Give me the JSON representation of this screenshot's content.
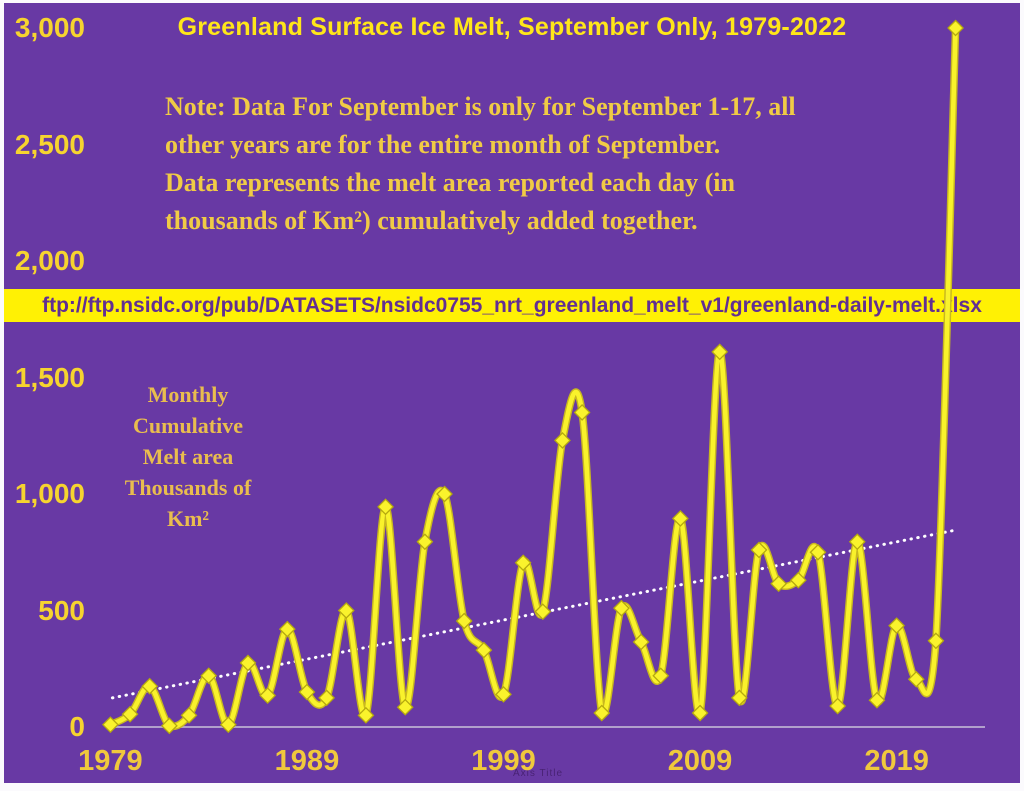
{
  "title": "Greenland Surface Ice Melt, September Only, 1979-2022",
  "note": {
    "lines": [
      "Note: Data For September is only for September 1-17, all",
      "other years are for the entire month of September.",
      "Data represents the melt area reported each day (in",
      "thousands of Km²) cumulatively added together."
    ]
  },
  "source_banner": {
    "url": "ftp://ftp.nsidc.org/pub/DATASETS/nsidc0755_nrt_greenland_melt_v1/greenland-daily-melt.xlsx"
  },
  "y_axis_title": {
    "lines": [
      "Monthly",
      "Cumulative",
      "Melt area",
      "Thousands of",
      "Km²"
    ]
  },
  "watermark": "Axis Title",
  "colors": {
    "background": "#6839A4",
    "line": "#F9F22B",
    "line_edge": "#C8B81F",
    "marker_fill": "#FAF32C",
    "marker_outline": "#B5A90F",
    "title_text": "#FFE619",
    "note_text": "#F0CB45",
    "tick_text": "#F6D42F",
    "axis_title_text": "#E9BD4E",
    "banner_background": "#FFF104",
    "banner_text": "#622F93",
    "trendline": "#FFFFFF",
    "axis_line": "#C9C3D9"
  },
  "chart_data": {
    "type": "line",
    "title": "Greenland Surface Ice Melt, September Only, 1979-2022",
    "xlabel": "",
    "ylabel": "Monthly Cumulative Melt area Thousands of Km²",
    "xlim": [
      1979,
      2022
    ],
    "ylim": [
      0,
      3000
    ],
    "grid": false,
    "legend": "none",
    "marker": "diamond",
    "line_smooth": true,
    "years": [
      1979,
      1980,
      1981,
      1982,
      1983,
      1984,
      1985,
      1986,
      1987,
      1988,
      1989,
      1990,
      1991,
      1992,
      1993,
      1994,
      1995,
      1996,
      1997,
      1998,
      1999,
      2000,
      2001,
      2002,
      2003,
      2004,
      2005,
      2006,
      2007,
      2008,
      2009,
      2010,
      2011,
      2012,
      2013,
      2014,
      2015,
      2016,
      2017,
      2018,
      2019,
      2020,
      2021,
      2022
    ],
    "values": [
      10,
      55,
      175,
      5,
      50,
      220,
      10,
      275,
      135,
      420,
      150,
      125,
      500,
      50,
      945,
      85,
      795,
      1000,
      455,
      330,
      140,
      705,
      495,
      1230,
      1350,
      60,
      510,
      365,
      220,
      895,
      60,
      1610,
      125,
      760,
      615,
      630,
      750,
      90,
      795,
      115,
      435,
      205,
      370,
      3000
    ],
    "y_ticks": [
      {
        "label": "0",
        "value": 0
      },
      {
        "label": "500",
        "value": 500
      },
      {
        "label": "1,000",
        "value": 1000
      },
      {
        "label": "1,500",
        "value": 1500
      },
      {
        "label": "2,000",
        "value": 2000
      },
      {
        "label": "2,500",
        "value": 2500
      },
      {
        "label": "3,000",
        "value": 3000
      }
    ],
    "x_ticks": [
      {
        "label": "1979",
        "value": 1979
      },
      {
        "label": "1989",
        "value": 1989
      },
      {
        "label": "1999",
        "value": 1999
      },
      {
        "label": "2009",
        "value": 2009
      },
      {
        "label": "2019",
        "value": 2019
      }
    ],
    "trendline": {
      "style": "dotted",
      "color": "#FFFFFF",
      "start_year": 1979,
      "start_value": 125,
      "end_year": 2022,
      "end_value": 845
    }
  }
}
